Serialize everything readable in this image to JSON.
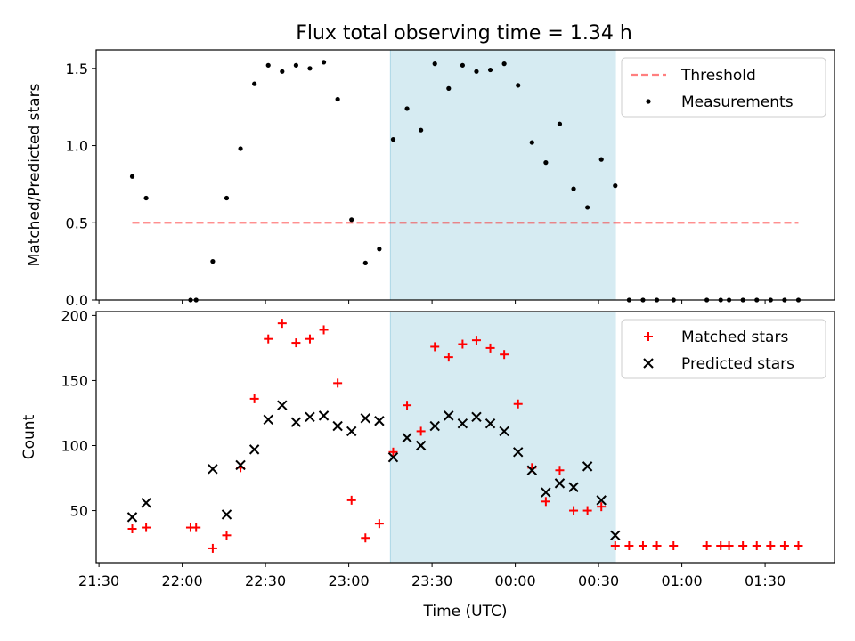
{
  "figure": {
    "title": "Flux total observing time = 1.34 h"
  },
  "colors": {
    "highlight": "#add8e6",
    "threshold": "#ff0000",
    "measurement": "#000000",
    "matched": "#ff0000",
    "predicted": "#000000"
  },
  "chart_data": [
    {
      "type": "scatter",
      "ylabel": "Matched/Predicted stars",
      "ylim": [
        0,
        1.62
      ],
      "yticks": [
        "0.0",
        "0.5",
        "1.0",
        "1.5"
      ],
      "x_format": "time HH:MM (UTC), axis spans 21:29 to 01:55",
      "highlight_span": [
        "23:15",
        "00:36"
      ],
      "legend_position": "upper right",
      "threshold": {
        "name": "Threshold",
        "value": 0.5,
        "x_range": [
          "21:42",
          "01:42"
        ],
        "style": "dashed"
      },
      "series": [
        {
          "name": "Measurements",
          "marker": "dot",
          "points": [
            [
              "21:42",
              0.8
            ],
            [
              "21:47",
              0.66
            ],
            [
              "22:03",
              0.0
            ],
            [
              "22:05",
              0.0
            ],
            [
              "22:11",
              0.25
            ],
            [
              "22:16",
              0.66
            ],
            [
              "22:21",
              0.98
            ],
            [
              "22:26",
              1.4
            ],
            [
              "22:31",
              1.52
            ],
            [
              "22:36",
              1.48
            ],
            [
              "22:41",
              1.52
            ],
            [
              "22:46",
              1.5
            ],
            [
              "22:51",
              1.54
            ],
            [
              "22:56",
              1.3
            ],
            [
              "23:01",
              0.52
            ],
            [
              "23:06",
              0.24
            ],
            [
              "23:11",
              0.33
            ],
            [
              "23:16",
              1.04
            ],
            [
              "23:21",
              1.24
            ],
            [
              "23:26",
              1.1
            ],
            [
              "23:31",
              1.53
            ],
            [
              "23:36",
              1.37
            ],
            [
              "23:41",
              1.52
            ],
            [
              "23:46",
              1.48
            ],
            [
              "23:51",
              1.49
            ],
            [
              "23:56",
              1.53
            ],
            [
              "00:01",
              1.39
            ],
            [
              "00:06",
              1.02
            ],
            [
              "00:11",
              0.89
            ],
            [
              "00:16",
              1.14
            ],
            [
              "00:21",
              0.72
            ],
            [
              "00:26",
              0.6
            ],
            [
              "00:31",
              0.91
            ],
            [
              "00:36",
              0.74
            ],
            [
              "00:41",
              0.0
            ],
            [
              "00:46",
              0.0
            ],
            [
              "00:51",
              0.0
            ],
            [
              "00:57",
              0.0
            ],
            [
              "01:09",
              0.0
            ],
            [
              "01:14",
              0.0
            ],
            [
              "01:17",
              0.0
            ],
            [
              "01:22",
              0.0
            ],
            [
              "01:27",
              0.0
            ],
            [
              "01:32",
              0.0
            ],
            [
              "01:37",
              0.0
            ],
            [
              "01:42",
              0.0
            ]
          ]
        }
      ]
    },
    {
      "type": "scatter",
      "title": "",
      "xlabel": "Time (UTC)",
      "ylabel": "Count",
      "ylim": [
        10,
        203
      ],
      "yticks": [
        "50",
        "100",
        "150",
        "200"
      ],
      "xticks": [
        "21:30",
        "22:00",
        "22:30",
        "23:00",
        "23:30",
        "00:00",
        "00:30",
        "01:00",
        "01:30"
      ],
      "x_format": "time HH:MM (UTC), axis spans 21:29 to 01:55",
      "highlight_span": [
        "23:15",
        "00:36"
      ],
      "legend_position": "upper right",
      "series": [
        {
          "name": "Matched stars",
          "marker": "plus",
          "points": [
            [
              "21:42",
              36
            ],
            [
              "21:47",
              37
            ],
            [
              "22:03",
              37
            ],
            [
              "22:05",
              37
            ],
            [
              "22:11",
              21
            ],
            [
              "22:16",
              31
            ],
            [
              "22:21",
              83
            ],
            [
              "22:26",
              136
            ],
            [
              "22:31",
              182
            ],
            [
              "22:36",
              194
            ],
            [
              "22:41",
              179
            ],
            [
              "22:46",
              182
            ],
            [
              "22:51",
              189
            ],
            [
              "22:56",
              148
            ],
            [
              "23:01",
              58
            ],
            [
              "23:06",
              29
            ],
            [
              "23:11",
              40
            ],
            [
              "23:16",
              95
            ],
            [
              "23:21",
              131
            ],
            [
              "23:26",
              111
            ],
            [
              "23:31",
              176
            ],
            [
              "23:36",
              168
            ],
            [
              "23:41",
              178
            ],
            [
              "23:46",
              181
            ],
            [
              "23:51",
              175
            ],
            [
              "23:56",
              170
            ],
            [
              "00:01",
              132
            ],
            [
              "00:06",
              83
            ],
            [
              "00:11",
              57
            ],
            [
              "00:16",
              81
            ],
            [
              "00:21",
              50
            ],
            [
              "00:26",
              50
            ],
            [
              "00:31",
              53
            ],
            [
              "00:36",
              23
            ],
            [
              "00:41",
              23
            ],
            [
              "00:46",
              23
            ],
            [
              "00:51",
              23
            ],
            [
              "00:57",
              23
            ],
            [
              "01:09",
              23
            ],
            [
              "01:14",
              23
            ],
            [
              "01:17",
              23
            ],
            [
              "01:22",
              23
            ],
            [
              "01:27",
              23
            ],
            [
              "01:32",
              23
            ],
            [
              "01:37",
              23
            ],
            [
              "01:42",
              23
            ]
          ]
        },
        {
          "name": "Predicted stars",
          "marker": "x",
          "points": [
            [
              "21:42",
              45
            ],
            [
              "21:47",
              56
            ],
            [
              "22:11",
              82
            ],
            [
              "22:16",
              47
            ],
            [
              "22:21",
              85
            ],
            [
              "22:26",
              97
            ],
            [
              "22:31",
              120
            ],
            [
              "22:36",
              131
            ],
            [
              "22:41",
              118
            ],
            [
              "22:46",
              122
            ],
            [
              "22:51",
              123
            ],
            [
              "22:56",
              115
            ],
            [
              "23:01",
              111
            ],
            [
              "23:06",
              121
            ],
            [
              "23:11",
              119
            ],
            [
              "23:16",
              91
            ],
            [
              "23:21",
              106
            ],
            [
              "23:26",
              100
            ],
            [
              "23:31",
              115
            ],
            [
              "23:36",
              123
            ],
            [
              "23:41",
              117
            ],
            [
              "23:46",
              122
            ],
            [
              "23:51",
              117
            ],
            [
              "23:56",
              111
            ],
            [
              "00:01",
              95
            ],
            [
              "00:06",
              81
            ],
            [
              "00:11",
              64
            ],
            [
              "00:16",
              71
            ],
            [
              "00:21",
              68
            ],
            [
              "00:26",
              84
            ],
            [
              "00:31",
              58
            ],
            [
              "00:36",
              31
            ]
          ]
        }
      ]
    }
  ]
}
